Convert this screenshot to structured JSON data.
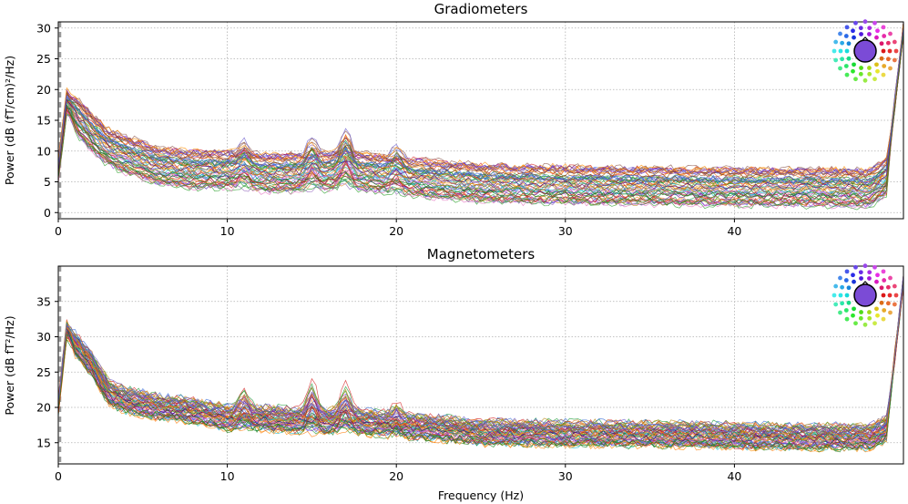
{
  "chart_data": [
    {
      "type": "line",
      "title": "Gradiometers",
      "xlabel": "",
      "ylabel": "Power (dB (fT/cm)²/Hz)",
      "xlim": [
        0,
        50
      ],
      "ylim": [
        -1,
        31
      ],
      "xticks": [
        0,
        10,
        20,
        30,
        40
      ],
      "yticks": [
        0,
        5,
        10,
        15,
        20,
        25,
        30
      ],
      "grid": true,
      "legend": "sensor-position color map, top-right",
      "series_count": 60,
      "channel_profile": {
        "x": [
          0,
          0.5,
          1,
          2,
          3,
          4,
          5,
          6,
          8,
          10,
          12,
          15,
          17,
          20,
          25,
          30,
          35,
          40,
          45,
          48,
          49,
          50
        ],
        "mean_power": [
          7,
          18,
          16,
          13,
          10.5,
          9.5,
          8.5,
          7.5,
          7,
          7,
          6.5,
          6.5,
          7,
          6,
          4.8,
          4.5,
          4.3,
          4.2,
          4.1,
          4,
          6,
          30
        ],
        "spread": 3,
        "peaks": [
          {
            "x": 11,
            "height": 3
          },
          {
            "x": 15,
            "height": 4
          },
          {
            "x": 17,
            "height": 5
          },
          {
            "x": 20,
            "height": 3
          }
        ]
      }
    },
    {
      "type": "line",
      "title": "Magnetometers",
      "xlabel": "Frequency (Hz)",
      "ylabel": "Power (dB fT²/Hz)",
      "xlim": [
        0,
        50
      ],
      "ylim": [
        12,
        40
      ],
      "xticks": [
        0,
        10,
        20,
        30,
        40
      ],
      "yticks": [
        15,
        20,
        25,
        30,
        35
      ],
      "grid": true,
      "legend": "sensor-position color map, top-right",
      "series_count": 60,
      "channel_profile": {
        "x": [
          0,
          0.5,
          1,
          2,
          3,
          4,
          5,
          6,
          8,
          10,
          12,
          15,
          17,
          20,
          25,
          30,
          35,
          40,
          45,
          48,
          49,
          50
        ],
        "mean_power": [
          20,
          31,
          29,
          26,
          22,
          21,
          20.5,
          20,
          19.5,
          18.5,
          18.5,
          18,
          18.2,
          17.5,
          16.5,
          16.3,
          16.2,
          16,
          15.8,
          15.8,
          17,
          38
        ],
        "spread": 1.6,
        "peaks": [
          {
            "x": 11,
            "height": 3
          },
          {
            "x": 15,
            "height": 5
          },
          {
            "x": 17,
            "height": 4
          },
          {
            "x": 20,
            "height": 2
          }
        ]
      }
    }
  ]
}
